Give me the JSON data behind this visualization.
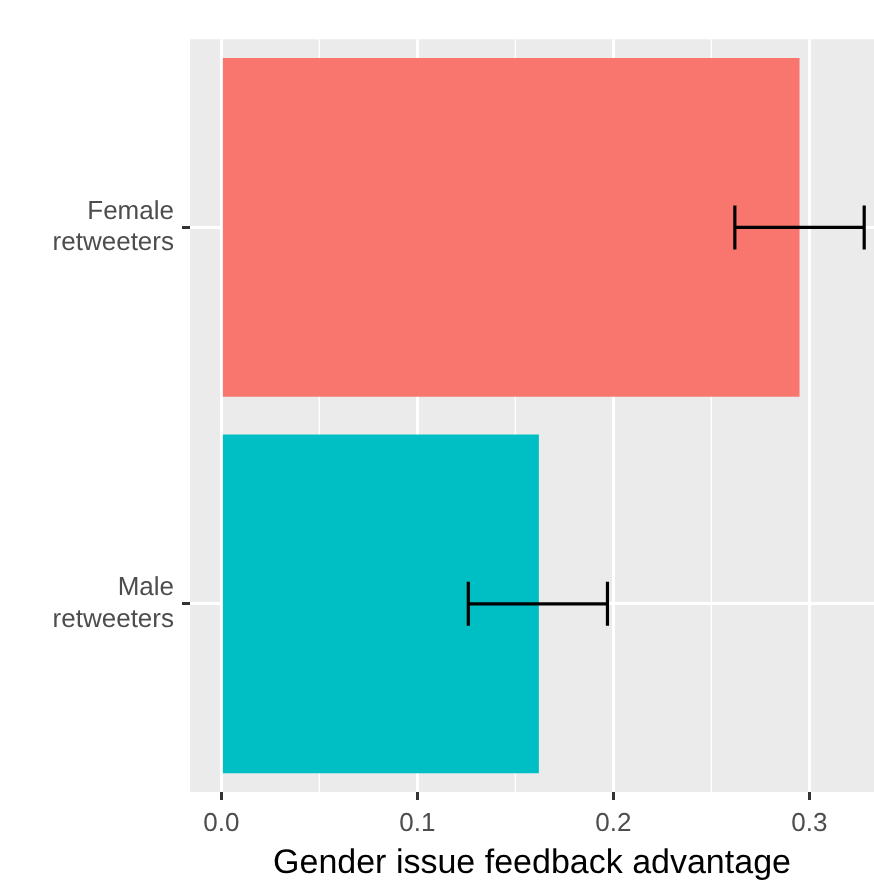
{
  "chart_data": {
    "type": "bar",
    "orientation": "horizontal",
    "xlabel": "Gender issue feedback advantage",
    "categories": [
      "Female retweeters",
      "Male retweeters"
    ],
    "values": [
      0.295,
      0.162
    ],
    "colors": [
      "#f8766d",
      "#00bfc4"
    ],
    "errors": [
      [
        0.262,
        0.328
      ],
      [
        0.126,
        0.197
      ]
    ],
    "xlim": [
      -0.016,
      0.333
    ],
    "xticks": [
      {
        "value": 0,
        "label": "0.0"
      },
      0.1,
      0.2,
      0.3
    ],
    "grid": true
  }
}
